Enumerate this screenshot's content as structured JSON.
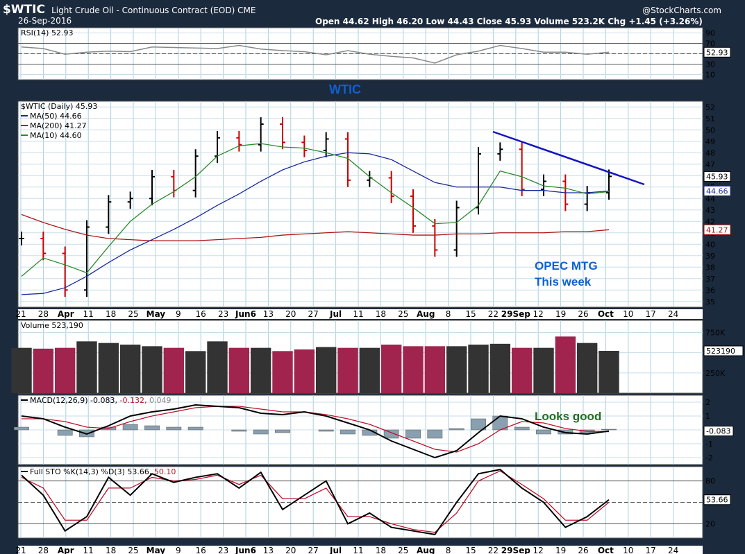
{
  "header": {
    "symbol": "$WTIC",
    "description": "Light Crude Oil - Continuous Contract (EOD)  CME",
    "date": "26-Sep-2016",
    "brand": "@StockCharts.com",
    "stats": "Open 44.62   High 46.20   Low 44.43   Close 45.93   Volume 523.2K   Chg +1.45 (+3.26%)"
  },
  "colors": {
    "up_bar": "#000000",
    "down_bar": "#cc0000",
    "ma50": "#1a2a9a",
    "ma200": "#b01515",
    "ma10": "#2a8a2a",
    "vol_up": "#333333",
    "vol_down": "#a0244e",
    "macd": "#000000",
    "macd_signal": "#c0102a",
    "histogram": "#8aa0b0",
    "annotation_blue": "#1060d0",
    "annotation_green": "#207020",
    "trendline": "#1515c0"
  },
  "annotations": {
    "wtic": "WTIC",
    "opec_line1": "OPEC MTG",
    "opec_line2": "This week",
    "looks_good": "Looks good"
  },
  "chart_data": [
    {
      "type": "line",
      "title": "RSI(14) 52.93",
      "current_value": "52.93",
      "ylim": [
        0,
        100
      ],
      "y_ticks": [
        "90",
        "70",
        "50",
        "30",
        "10"
      ],
      "reference_lines": [
        70,
        30
      ],
      "x": [
        "Mar 21",
        "Mar 28",
        "Apr 4",
        "Apr 11",
        "Apr 18",
        "Apr 25",
        "May 2",
        "May 9",
        "May 16",
        "May 23",
        "May 30",
        "Jun 6",
        "Jun 13",
        "Jun 20",
        "Jun 27",
        "Jul 4",
        "Jul 11",
        "Jul 18",
        "Jul 25",
        "Aug 1",
        "Aug 8",
        "Aug 15",
        "Aug 22",
        "Aug 29",
        "Sep 5",
        "Sep 12",
        "Sep 19",
        "Sep 26"
      ],
      "values": [
        63,
        60,
        49,
        53,
        55,
        54,
        63,
        62,
        61,
        60,
        66,
        59,
        56,
        54,
        48,
        56,
        49,
        45,
        42,
        32,
        48,
        55,
        66,
        60,
        53,
        53,
        49,
        53
      ]
    },
    {
      "type": "candlestick",
      "title": "$WTIC (Daily) 45.93",
      "legend": [
        {
          "name": "MA(50) 44.66"
        },
        {
          "name": "MA(200) 41.27"
        },
        {
          "name": "MA(10) 44.60"
        }
      ],
      "ylim": [
        34.5,
        52.5
      ],
      "y_ticks": [
        "52",
        "51",
        "50",
        "49",
        "48",
        "47",
        "46",
        "45",
        "44",
        "43",
        "42",
        "41",
        "40",
        "39",
        "38",
        "37",
        "36",
        "35"
      ],
      "right_labels": [
        "45.93",
        "44.66",
        "41.27"
      ],
      "x_labels": [
        "21",
        "28",
        "Apr",
        "11",
        "18",
        "25",
        "May",
        "9",
        "16",
        "23",
        "Jun6",
        "13",
        "20",
        "27",
        "Jul",
        "11",
        "18",
        "25",
        "Aug",
        "8",
        "15",
        "22",
        "29Sep",
        "12",
        "19",
        "26",
        "Oct",
        "10",
        "17",
        "24"
      ],
      "x": [
        "Mar 21",
        "Mar 28",
        "Apr 4",
        "Apr 11",
        "Apr 18",
        "Apr 25",
        "May 2",
        "May 9",
        "May 16",
        "May 23",
        "May 30",
        "Jun 6",
        "Jun 13",
        "Jun 20",
        "Jun 27",
        "Jul 4",
        "Jul 11",
        "Jul 18",
        "Jul 25",
        "Aug 1",
        "Aug 8",
        "Aug 15",
        "Aug 22",
        "Aug 29",
        "Sep 5",
        "Sep 12",
        "Sep 19",
        "Sep 26"
      ],
      "close": [
        40.5,
        39.2,
        36.0,
        41.5,
        43.7,
        44.0,
        45.9,
        44.7,
        47.7,
        49.3,
        48.7,
        50.5,
        48.9,
        48.2,
        49.2,
        45.6,
        45.8,
        44.2,
        41.6,
        39.5,
        43.2,
        47.9,
        48.3,
        44.8,
        45.5,
        43.5,
        44.5,
        45.93
      ],
      "ma50": [
        35.6,
        35.7,
        36.2,
        37.2,
        38.4,
        39.5,
        40.4,
        41.3,
        42.3,
        43.4,
        44.4,
        45.5,
        46.5,
        47.2,
        47.7,
        48.0,
        47.9,
        47.4,
        46.4,
        45.4,
        45.0,
        45.0,
        45.0,
        44.7,
        44.7,
        44.5,
        44.5,
        44.66
      ],
      "ma200": [
        42.6,
        41.9,
        41.3,
        40.8,
        40.5,
        40.4,
        40.3,
        40.3,
        40.3,
        40.4,
        40.5,
        40.6,
        40.8,
        40.9,
        41.0,
        41.1,
        41.0,
        40.9,
        40.8,
        40.8,
        40.9,
        40.9,
        41.0,
        41.0,
        41.0,
        41.1,
        41.1,
        41.27
      ],
      "ma10": [
        37.2,
        38.8,
        38.2,
        37.5,
        39.8,
        42.0,
        43.5,
        44.6,
        45.9,
        47.7,
        48.6,
        48.8,
        48.5,
        48.4,
        48.0,
        47.5,
        45.9,
        44.5,
        43.2,
        41.8,
        41.9,
        43.4,
        46.4,
        45.9,
        45.1,
        44.9,
        44.4,
        44.6
      ]
    },
    {
      "type": "bar",
      "title": "Volume 523,190",
      "y_ticks": [
        "750K",
        "500K",
        "250K"
      ],
      "current_value": "523190",
      "x": [
        "Mar 21",
        "Mar 28",
        "Apr 4",
        "Apr 11",
        "Apr 18",
        "Apr 25",
        "May 2",
        "May 9",
        "May 16",
        "May 23",
        "May 30",
        "Jun 6",
        "Jun 13",
        "Jun 20",
        "Jun 27",
        "Jul 4",
        "Jul 11",
        "Jul 18",
        "Jul 25",
        "Aug 1",
        "Aug 8",
        "Aug 15",
        "Aug 22",
        "Aug 29",
        "Sep 5",
        "Sep 12",
        "Sep 19",
        "Sep 26"
      ],
      "values": [
        560,
        550,
        560,
        640,
        620,
        600,
        580,
        560,
        520,
        640,
        560,
        560,
        520,
        540,
        570,
        560,
        560,
        600,
        580,
        580,
        580,
        600,
        610,
        560,
        560,
        700,
        620,
        523
      ]
    },
    {
      "type": "line",
      "title": "MACD(12,26,9) -0.083, -0.132, 0.049",
      "series_labels": [
        "-0.083",
        "-0.132",
        "0.049"
      ],
      "y_ticks": [
        "2",
        "1",
        "0",
        "-1",
        "-2"
      ],
      "current_value": "-0.083",
      "ylim": [
        -2.5,
        2.5
      ],
      "x": [
        "Mar 21",
        "Mar 28",
        "Apr 4",
        "Apr 11",
        "Apr 18",
        "Apr 25",
        "May 2",
        "May 9",
        "May 16",
        "May 23",
        "May 30",
        "Jun 6",
        "Jun 13",
        "Jun 20",
        "Jun 27",
        "Jul 4",
        "Jul 11",
        "Jul 18",
        "Jul 25",
        "Aug 1",
        "Aug 8",
        "Aug 15",
        "Aug 22",
        "Aug 29",
        "Sep 5",
        "Sep 12",
        "Sep 19",
        "Sep 26"
      ],
      "macd": [
        1.0,
        0.8,
        0.2,
        -0.3,
        0.3,
        1.0,
        1.3,
        1.5,
        1.8,
        1.7,
        1.6,
        1.2,
        1.1,
        1.3,
        1.0,
        0.5,
        0.0,
        -0.8,
        -1.4,
        -2.0,
        -1.5,
        -0.2,
        1.0,
        0.8,
        0.2,
        -0.2,
        -0.3,
        -0.083
      ],
      "signal": [
        0.8,
        0.8,
        0.6,
        0.2,
        0.1,
        0.6,
        1.0,
        1.3,
        1.6,
        1.7,
        1.7,
        1.5,
        1.3,
        1.3,
        1.1,
        0.8,
        0.4,
        -0.2,
        -0.8,
        -1.4,
        -1.6,
        -1.0,
        0.0,
        0.6,
        0.5,
        0.1,
        -0.1,
        -0.132
      ],
      "histogram": [
        0.2,
        0.0,
        -0.4,
        -0.5,
        0.2,
        0.4,
        0.3,
        0.2,
        0.2,
        0.0,
        -0.1,
        -0.3,
        -0.2,
        0.0,
        -0.1,
        -0.3,
        -0.4,
        -0.6,
        -0.6,
        -0.6,
        0.1,
        0.8,
        1.0,
        0.2,
        -0.3,
        -0.3,
        -0.2,
        0.049
      ]
    },
    {
      "type": "line",
      "title": "Full STO %K(14,3) %D(3) 53.66, 50.10",
      "series_labels": [
        "53.66",
        "50.10"
      ],
      "y_ticks": [
        "80",
        "20"
      ],
      "current_value": "53.66",
      "ylim": [
        0,
        100
      ],
      "x": [
        "Mar 21",
        "Mar 28",
        "Apr 4",
        "Apr 11",
        "Apr 18",
        "Apr 25",
        "May 2",
        "May 9",
        "May 16",
        "May 23",
        "May 30",
        "Jun 6",
        "Jun 13",
        "Jun 20",
        "Jun 27",
        "Jul 4",
        "Jul 11",
        "Jul 18",
        "Jul 25",
        "Aug 1",
        "Aug 8",
        "Aug 15",
        "Aug 22",
        "Aug 29",
        "Sep 5",
        "Sep 12",
        "Sep 19",
        "Sep 26"
      ],
      "k": [
        88,
        60,
        10,
        30,
        85,
        60,
        90,
        78,
        85,
        90,
        70,
        92,
        40,
        60,
        80,
        20,
        35,
        15,
        10,
        5,
        50,
        90,
        96,
        70,
        50,
        15,
        30,
        53.66
      ],
      "d": [
        85,
        70,
        25,
        25,
        70,
        70,
        85,
        80,
        82,
        88,
        75,
        88,
        55,
        55,
        70,
        30,
        30,
        20,
        12,
        8,
        35,
        80,
        94,
        75,
        55,
        25,
        25,
        50.1
      ]
    }
  ]
}
